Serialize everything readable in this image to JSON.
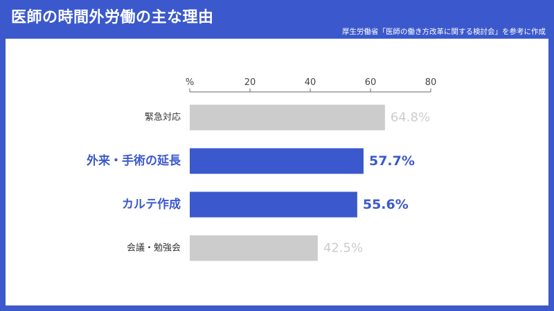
{
  "header": {
    "title": "医師の時間外労働の主な理由",
    "source": "厚生労働省「医師の働き方改革に関する検討会」を参考に作成"
  },
  "colors": {
    "brand": "#3b59cc",
    "highlight": "#3b59cc",
    "muted_bar": "#cccccc",
    "muted_text": "#cccccc",
    "axis": "#666666"
  },
  "chart_data": {
    "type": "bar",
    "orientation": "horizontal",
    "axis_unit_label": "%",
    "categories": [
      "緊急対応",
      "外来・手術の延長",
      "カルテ作成",
      "会議・勉強会"
    ],
    "values": [
      64.8,
      57.7,
      55.6,
      42.5
    ],
    "value_labels": [
      "64.8%",
      "57.7%",
      "55.6%",
      "42.5%"
    ],
    "highlighted": [
      false,
      true,
      true,
      false
    ],
    "xlim": [
      0,
      80
    ],
    "xticks": [
      0,
      20,
      40,
      60,
      80
    ],
    "xtick_labels": [
      "%",
      "20",
      "40",
      "60",
      "80"
    ],
    "xaxis_position": "top",
    "grid": false
  }
}
